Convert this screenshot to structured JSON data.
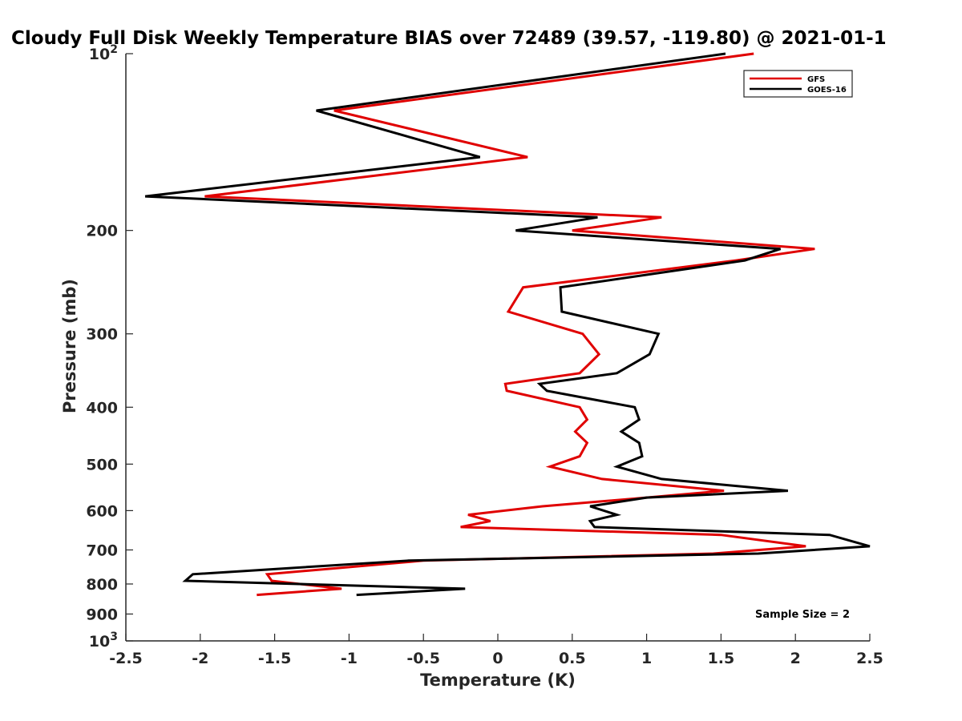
{
  "chart_data": {
    "type": "line",
    "title": "Cloudy Full Disk Weekly Temperature BIAS over 72489 (39.57, -119.80) @ 2021-01-1",
    "xlabel": "Temperature (K)",
    "ylabel": "Pressure (mb)",
    "xlim": [
      -2.5,
      2.5
    ],
    "ylim": [
      100,
      1000
    ],
    "yscale": "log",
    "y_reversed": true,
    "grid": false,
    "legend_position": "top-right",
    "xticks": [
      "-2.5",
      "-2",
      "-1.5",
      "-1",
      "-0.5",
      "0",
      "0.5",
      "1",
      "1.5",
      "2",
      "2.5"
    ],
    "xtick_values": [
      -2.5,
      -2,
      -1.5,
      -1,
      -0.5,
      0,
      0.5,
      1,
      1.5,
      2,
      2.5
    ],
    "yticks": [
      {
        "value": 100,
        "base": "10",
        "exp": "2"
      },
      {
        "value": 200,
        "label": "200"
      },
      {
        "value": 300,
        "label": "300"
      },
      {
        "value": 400,
        "label": "400"
      },
      {
        "value": 500,
        "label": "500"
      },
      {
        "value": 600,
        "label": "600"
      },
      {
        "value": 700,
        "label": "700"
      },
      {
        "value": 800,
        "label": "800"
      },
      {
        "value": 900,
        "label": "900"
      },
      {
        "value": 1000,
        "base": "10",
        "exp": "3"
      }
    ],
    "series": [
      {
        "name": "GFS",
        "color": "#e00000",
        "points": [
          [
            1.72,
            100
          ],
          [
            -1.1,
            125
          ],
          [
            0.2,
            150
          ],
          [
            -1.97,
            175
          ],
          [
            1.1,
            190
          ],
          [
            0.5,
            200
          ],
          [
            2.13,
            215
          ],
          [
            1.6,
            225
          ],
          [
            0.17,
            250
          ],
          [
            0.07,
            275
          ],
          [
            0.57,
            300
          ],
          [
            0.68,
            325
          ],
          [
            0.55,
            350
          ],
          [
            0.05,
            365
          ],
          [
            0.06,
            375
          ],
          [
            0.55,
            400
          ],
          [
            0.6,
            420
          ],
          [
            0.52,
            440
          ],
          [
            0.6,
            460
          ],
          [
            0.55,
            485
          ],
          [
            0.35,
            505
          ],
          [
            0.7,
            530
          ],
          [
            1.52,
            555
          ],
          [
            1.0,
            570
          ],
          [
            0.3,
            590
          ],
          [
            -0.2,
            610
          ],
          [
            -0.05,
            625
          ],
          [
            -0.25,
            640
          ],
          [
            1.5,
            660
          ],
          [
            2.07,
            690
          ],
          [
            1.45,
            710
          ],
          [
            -0.5,
            730
          ],
          [
            -1.55,
            770
          ],
          [
            -1.52,
            790
          ],
          [
            -1.05,
            815
          ],
          [
            -1.62,
            835
          ]
        ]
      },
      {
        "name": "GOES-16",
        "color": "#000000",
        "points": [
          [
            1.53,
            100
          ],
          [
            -1.22,
            125
          ],
          [
            -0.12,
            150
          ],
          [
            -2.37,
            175
          ],
          [
            0.67,
            190
          ],
          [
            0.12,
            200
          ],
          [
            1.9,
            215
          ],
          [
            1.66,
            225
          ],
          [
            0.42,
            250
          ],
          [
            0.43,
            275
          ],
          [
            1.08,
            300
          ],
          [
            1.02,
            325
          ],
          [
            0.8,
            350
          ],
          [
            0.28,
            365
          ],
          [
            0.33,
            375
          ],
          [
            0.92,
            400
          ],
          [
            0.95,
            420
          ],
          [
            0.83,
            440
          ],
          [
            0.95,
            460
          ],
          [
            0.97,
            485
          ],
          [
            0.8,
            505
          ],
          [
            1.1,
            530
          ],
          [
            1.95,
            555
          ],
          [
            1.0,
            570
          ],
          [
            0.62,
            590
          ],
          [
            0.8,
            610
          ],
          [
            0.62,
            625
          ],
          [
            0.65,
            640
          ],
          [
            2.23,
            660
          ],
          [
            2.5,
            690
          ],
          [
            1.75,
            710
          ],
          [
            -0.6,
            730
          ],
          [
            -2.05,
            770
          ],
          [
            -2.1,
            790
          ],
          [
            -0.22,
            815
          ],
          [
            -0.95,
            835
          ]
        ]
      }
    ],
    "legend": [
      {
        "label": "GFS",
        "color": "#e00000"
      },
      {
        "label": "GOES-16",
        "color": "#000000"
      }
    ],
    "annotation": "Sample Size = 2"
  }
}
